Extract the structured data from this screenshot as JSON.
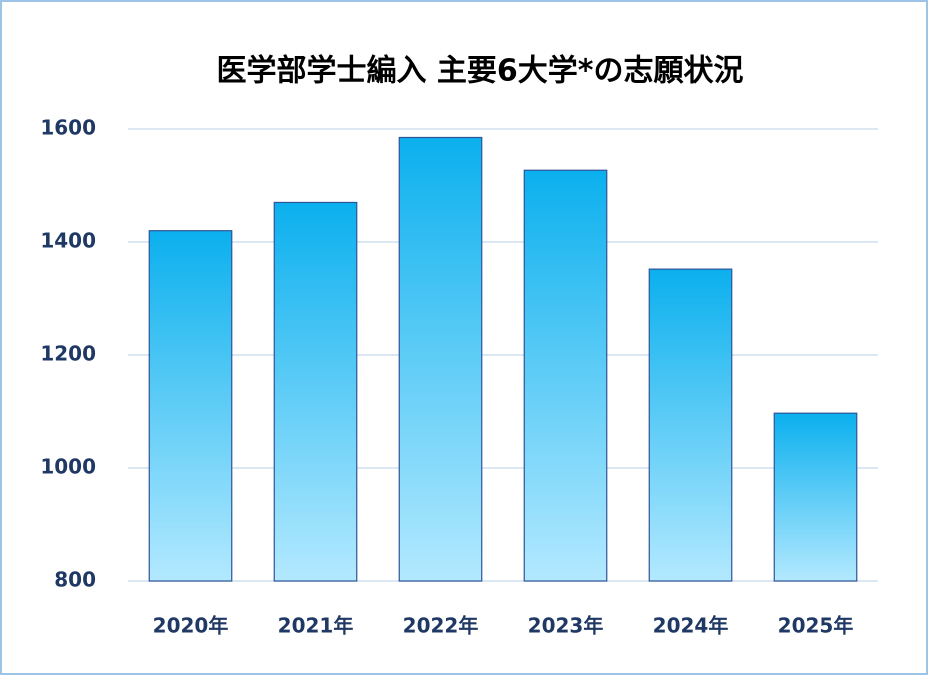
{
  "chart_data": {
    "type": "bar",
    "title": "医学部学士編入 主要6大学*の志願状況",
    "categories": [
      "2020年",
      "2021年",
      "2022年",
      "2023年",
      "2024年",
      "2025年"
    ],
    "values": [
      1420,
      1470,
      1585,
      1527,
      1352,
      1097
    ],
    "color": "#0bb0ee",
    "color_light": "#b3e9ff",
    "edge_color": "#2f5597",
    "ylim": [
      800,
      1600
    ],
    "yticks": [
      800,
      1000,
      1200,
      1400,
      1600
    ],
    "grid": true
  }
}
